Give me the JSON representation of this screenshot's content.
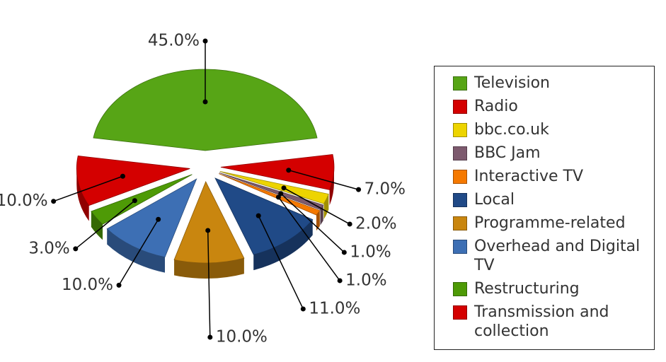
{
  "chart_data": {
    "type": "pie",
    "categories": [
      "Television",
      "Radio",
      "bbc.co.uk",
      "BBC Jam",
      "Interactive TV",
      "Local",
      "Programme-related",
      "Overhead and Digital TV",
      "Restructuring",
      "Transmission and collection"
    ],
    "values": [
      45,
      7,
      2,
      1,
      1,
      11,
      10,
      10,
      3,
      10
    ],
    "value_labels": [
      "45.0%",
      "7.0%",
      "2.0%",
      "1.0%",
      "1.0%",
      "11.0%",
      "10.0%",
      "10.0%",
      "3.0%",
      "10.0%"
    ],
    "colors": [
      "#57a516",
      "#d40000",
      "#edd400",
      "#7d5a6e",
      "#f57900",
      "#204a87",
      "#c9860f",
      "#3d6fb4",
      "#4e9a06",
      "#d40000"
    ],
    "legend": "right"
  }
}
